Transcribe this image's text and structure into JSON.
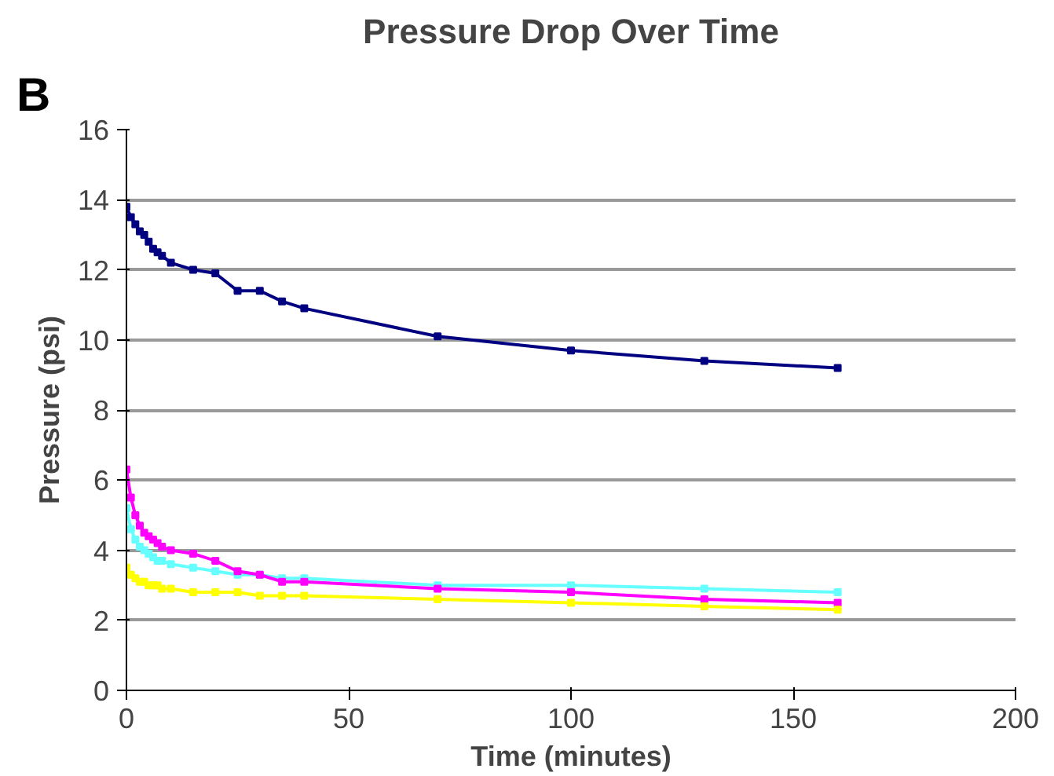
{
  "chart_data": {
    "type": "line",
    "title": "Pressure Drop Over Time",
    "xlabel": "Time (minutes)",
    "ylabel": "Pressure (psi)",
    "annotations": [
      "B"
    ],
    "x": [
      0,
      1,
      2,
      3,
      4,
      5,
      6,
      7,
      8,
      10,
      15,
      20,
      25,
      30,
      35,
      40,
      70,
      100,
      130,
      160
    ],
    "series": [
      {
        "color": "#000080",
        "values": [
          13.8,
          13.5,
          13.3,
          13.1,
          13.0,
          12.8,
          12.6,
          12.5,
          12.4,
          12.2,
          12.0,
          11.9,
          11.4,
          11.4,
          11.1,
          10.9,
          10.1,
          9.7,
          9.4,
          9.2
        ]
      },
      {
        "color": "#66ffff",
        "values": [
          5.2,
          4.6,
          4.3,
          4.1,
          4.0,
          3.9,
          3.8,
          3.7,
          3.7,
          3.6,
          3.5,
          3.4,
          3.3,
          3.3,
          3.2,
          3.2,
          3.0,
          3.0,
          2.9,
          2.8
        ]
      },
      {
        "color": "#ff00ff",
        "values": [
          6.3,
          5.5,
          5.0,
          4.7,
          4.5,
          4.4,
          4.3,
          4.2,
          4.1,
          4.0,
          3.9,
          3.7,
          3.4,
          3.3,
          3.1,
          3.1,
          2.9,
          2.8,
          2.6,
          2.5
        ]
      },
      {
        "color": "#ffff00",
        "values": [
          3.5,
          3.3,
          3.2,
          3.1,
          3.1,
          3.0,
          3.0,
          3.0,
          2.9,
          2.9,
          2.8,
          2.8,
          2.8,
          2.7,
          2.7,
          2.7,
          2.6,
          2.5,
          2.4,
          2.3
        ]
      }
    ],
    "xlim": [
      0,
      200
    ],
    "xticks": [
      0,
      50,
      100,
      150,
      200
    ],
    "ylim": [
      0,
      16
    ],
    "yticks": [
      0,
      2,
      4,
      6,
      8,
      10,
      12,
      14,
      16
    ],
    "grid": "y",
    "marker": "square",
    "line_style": "solid"
  }
}
